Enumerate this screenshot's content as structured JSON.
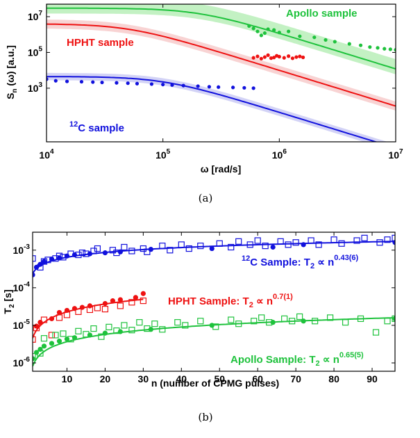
{
  "colors": {
    "blue": "#1010dd",
    "red": "#ee1111",
    "green": "#1ec23c",
    "blue_band": "#c8c8f4",
    "red_band": "#f6c8c8",
    "green_band": "#b4eeb4"
  },
  "chart_data": [
    {
      "type": "scatter",
      "caption": "(a)",
      "xlabel": "ω [rad/s]",
      "ylabel": {
        "base": "S",
        "sub": "n",
        "rest": " (ω) [a.u.]"
      },
      "x_scale": "log",
      "y_scale": "log",
      "xlim": [
        10000,
        10000000
      ],
      "ylim": [
        1,
        50000000
      ],
      "x_ticks": [
        {
          "base": "10",
          "exp": "4",
          "value": 10000
        },
        {
          "base": "10",
          "exp": "5",
          "value": 100000
        },
        {
          "base": "10",
          "exp": "6",
          "value": 1000000
        },
        {
          "base": "10",
          "exp": "7",
          "value": 10000000
        }
      ],
      "y_ticks": [
        {
          "base": "10",
          "exp": "3",
          "value": 1000
        },
        {
          "base": "10",
          "exp": "5",
          "value": 100000
        },
        {
          "base": "10",
          "exp": "7",
          "value": 10000000
        }
      ],
      "grid": false,
      "annotations": {
        "apollo": "Apollo sample",
        "hpht": "HPHT sample",
        "c12": {
          "sup": "12",
          "text": "C sample"
        }
      },
      "series": [
        {
          "name": "Apollo sample",
          "color_key": "green",
          "fit_model": {
            "amplitude": 30000000,
            "corner": 200000
          },
          "band_factor": [
            2.0,
            3.5
          ],
          "x": [
            550000,
            600000,
            650000,
            700000,
            750000,
            800000,
            900000,
            1000000,
            1200000,
            1500000,
            2000000,
            2500000,
            3000000,
            4000000,
            5000000,
            6000000,
            7000000,
            8000000,
            9000000,
            10000000
          ],
          "y": [
            3000000,
            2200000,
            1500000,
            900000,
            1200000,
            2000000,
            1800000,
            1300000,
            1500000,
            800000,
            700000,
            500000,
            400000,
            300000,
            250000,
            200000,
            180000,
            160000,
            150000,
            140000
          ]
        },
        {
          "name": "HPHT sample",
          "color_key": "red",
          "fit_model": {
            "amplitude": 4000000,
            "corner": 50000
          },
          "band_factor": [
            1.8,
            1.8
          ],
          "x": [
            600000,
            650000,
            700000,
            750000,
            800000,
            850000,
            900000,
            950000,
            1000000,
            1100000,
            1200000,
            1300000,
            1400000,
            1500000,
            1600000
          ],
          "y": [
            50000,
            60000,
            45000,
            55000,
            70000,
            48000,
            52000,
            65000,
            58000,
            50000,
            62000,
            47000,
            55000,
            60000,
            53000
          ]
        },
        {
          "name": "12C sample",
          "color_key": "blue",
          "fit_model": {
            "amplitude": 4500,
            "corner": 100000
          },
          "band_factor": [
            1.6,
            1.6
          ],
          "x": [
            10000,
            12000,
            15000,
            20000,
            25000,
            30000,
            40000,
            50000,
            60000,
            80000,
            100000,
            120000,
            150000,
            200000,
            250000,
            300000,
            400000,
            500000,
            600000
          ],
          "y": [
            3200,
            2600,
            2400,
            2300,
            2200,
            2100,
            2000,
            1900,
            1800,
            1700,
            1600,
            1500,
            1400,
            1300,
            1200,
            1150,
            1100,
            1050,
            1000
          ]
        }
      ]
    },
    {
      "type": "scatter",
      "caption": "(b)",
      "xlabel": "n (number of CPMG pulses)",
      "ylabel": {
        "base": "T",
        "sub": "2",
        "rest": " [s]"
      },
      "x_scale": "linear",
      "y_scale": "log",
      "xlim": [
        1,
        96
      ],
      "ylim": [
        6e-07,
        0.003
      ],
      "x_ticks": [
        "10",
        "20",
        "30",
        "40",
        "50",
        "60",
        "70",
        "80",
        "90"
      ],
      "y_ticks": [
        {
          "base": "10",
          "exp": "-3",
          "value": 0.001
        },
        {
          "base": "10",
          "exp": "-4",
          "value": 0.0001
        },
        {
          "base": "10",
          "exp": "-5",
          "value": 1e-05
        },
        {
          "base": "10",
          "exp": "-6",
          "value": 1e-06
        }
      ],
      "grid": false,
      "annotations": {
        "c12": {
          "sup": "12",
          "text": "C Sample: T",
          "sub": "2",
          "rel": " ∝ n",
          "exp": "0.43(6)"
        },
        "hpht": {
          "text": "HPHT Sample: T",
          "sub": "2",
          "rel": " ∝ n",
          "exp": "0.7(1)"
        },
        "apollo": {
          "text": "Apollo Sample: T",
          "sub": "2",
          "rel": " ∝ n",
          "exp": "0.65(5)"
        }
      },
      "series": [
        {
          "name": "12C Sample",
          "color_key": "blue",
          "fit": {
            "coef": 0.00024,
            "exp": 0.43,
            "x_range": [
              1,
              96
            ]
          },
          "filled": {
            "x": [
              1,
              2,
              3,
              4,
              6,
              8,
              10,
              12,
              16,
              20,
              24,
              32,
              48,
              64,
              72,
              96
            ],
            "y": [
              0.00022,
              0.00035,
              0.00042,
              0.0005,
              0.00058,
              0.00062,
              0.0007,
              0.00075,
              0.0008,
              0.00085,
              0.0009,
              0.00105,
              0.0011,
              0.0012,
              0.0014,
              0.0016
            ]
          },
          "open": {
            "x": [
              1,
              3,
              4,
              5,
              7,
              8,
              9,
              11,
              13,
              14,
              15,
              17,
              18,
              22,
              23,
              25,
              27,
              30,
              31,
              35,
              37,
              40,
              42,
              45,
              50,
              53,
              55,
              58,
              60,
              62,
              66,
              68,
              70,
              74,
              76,
              80,
              82,
              86,
              88,
              92,
              94,
              96
            ],
            "y": [
              0.0006,
              0.00035,
              0.0005,
              0.00055,
              0.0006,
              0.0007,
              0.00065,
              0.0008,
              0.00075,
              0.00085,
              0.0008,
              0.00095,
              0.0011,
              0.001,
              0.00085,
              0.0012,
              0.00095,
              0.0011,
              0.0009,
              0.0013,
              0.001,
              0.0014,
              0.0011,
              0.0013,
              0.0015,
              0.0012,
              0.0017,
              0.0014,
              0.0018,
              0.0013,
              0.0017,
              0.0014,
              0.0016,
              0.0018,
              0.0014,
              0.0019,
              0.0015,
              0.0018,
              0.0021,
              0.0016,
              0.0019,
              0.0021
            ]
          }
        },
        {
          "name": "HPHT Sample",
          "color_key": "red",
          "fit": {
            "coef": 4.55e-06,
            "exp": 0.7,
            "x_range": [
              1,
              30
            ]
          },
          "filled": {
            "x": [
              2,
              3,
              6,
              8,
              10,
              12,
              14,
              16,
              20,
              22,
              24,
              28,
              30
            ],
            "y": [
              9.5e-06,
              1.2e-05,
              1.5e-05,
              2.2e-05,
              2.5e-05,
              2.8e-05,
              3e-05,
              3.3e-05,
              3.8e-05,
              4.5e-05,
              4.8e-05,
              5.5e-05,
              7e-05
            ]
          },
          "open": {
            "x": [
              1,
              2,
              4,
              6,
              8,
              10,
              13,
              16,
              18,
              20,
              24,
              27,
              30
            ],
            "y": [
              4.2e-06,
              8.5e-06,
              1.4e-05,
              5.5e-06,
              1.6e-05,
              1.9e-05,
              2.3e-05,
              2.6e-05,
              2.9e-05,
              2.7e-05,
              3.3e-05,
              4.1e-05,
              4.5e-05
            ]
          }
        },
        {
          "name": "Apollo Sample",
          "color_key": "green",
          "fit": {
            "coef": 8.2e-07,
            "exp": 0.65,
            "x_range": [
              1,
              96
            ]
          },
          "filled": {
            "x": [
              1,
              2,
              3,
              4,
              6,
              8,
              10,
              12,
              16,
              20,
              24,
              32,
              48,
              64,
              72,
              96
            ],
            "y": [
              1.3e-06,
              1.9e-06,
              2.3e-06,
              2.8e-06,
              3.3e-06,
              3.8e-06,
              4.3e-06,
              4.7e-06,
              5.5e-06,
              6.2e-06,
              6.8e-06,
              7.8e-06,
              1e-05,
              1.2e-05,
              1.3e-05,
              1.5e-05
            ]
          },
          "open": {
            "x": [
              1,
              3,
              4,
              7,
              9,
              11,
              13,
              15,
              17,
              19,
              21,
              23,
              25,
              27,
              29,
              31,
              33,
              35,
              39,
              41,
              45,
              49,
              53,
              55,
              59,
              61,
              63,
              67,
              69,
              71,
              75,
              79,
              83,
              87,
              91,
              94,
              96
            ],
            "y": [
              1.5e-06,
              1.8e-06,
              4.5e-06,
              5.5e-06,
              6e-06,
              4.3e-06,
              7e-06,
              5.8e-06,
              8.2e-06,
              5e-06,
              9e-06,
              7.2e-06,
              1e-05,
              7.5e-06,
              1.2e-05,
              8.2e-06,
              1.1e-05,
              7.8e-06,
              1.2e-05,
              1e-05,
              1.3e-05,
              9.2e-06,
              1.4e-05,
              1.1e-05,
              1.3e-05,
              1.6e-05,
              1.2e-05,
              1.5e-05,
              1.3e-05,
              1.7e-05,
              1.3e-05,
              1.6e-05,
              1.2e-05,
              1.5e-05,
              6.5e-06,
              1.3e-05,
              1.5e-05
            ]
          }
        }
      ]
    }
  ]
}
